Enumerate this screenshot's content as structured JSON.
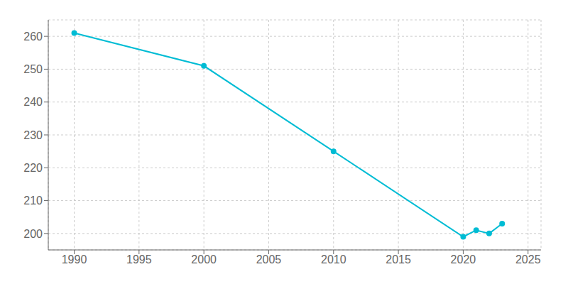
{
  "chart_data": {
    "type": "line",
    "x": [
      1990,
      2000,
      2010,
      2020,
      2021,
      2022,
      2023
    ],
    "values": [
      261,
      251,
      225,
      199,
      201,
      200,
      203
    ],
    "color": "#00bcd4",
    "marker": "circle",
    "xlim": [
      1988,
      2026
    ],
    "ylim": [
      195,
      265
    ],
    "xticks": [
      1990,
      1995,
      2000,
      2005,
      2010,
      2015,
      2020,
      2025
    ],
    "yticks": [
      200,
      210,
      220,
      230,
      240,
      250,
      260
    ],
    "grid": true
  }
}
